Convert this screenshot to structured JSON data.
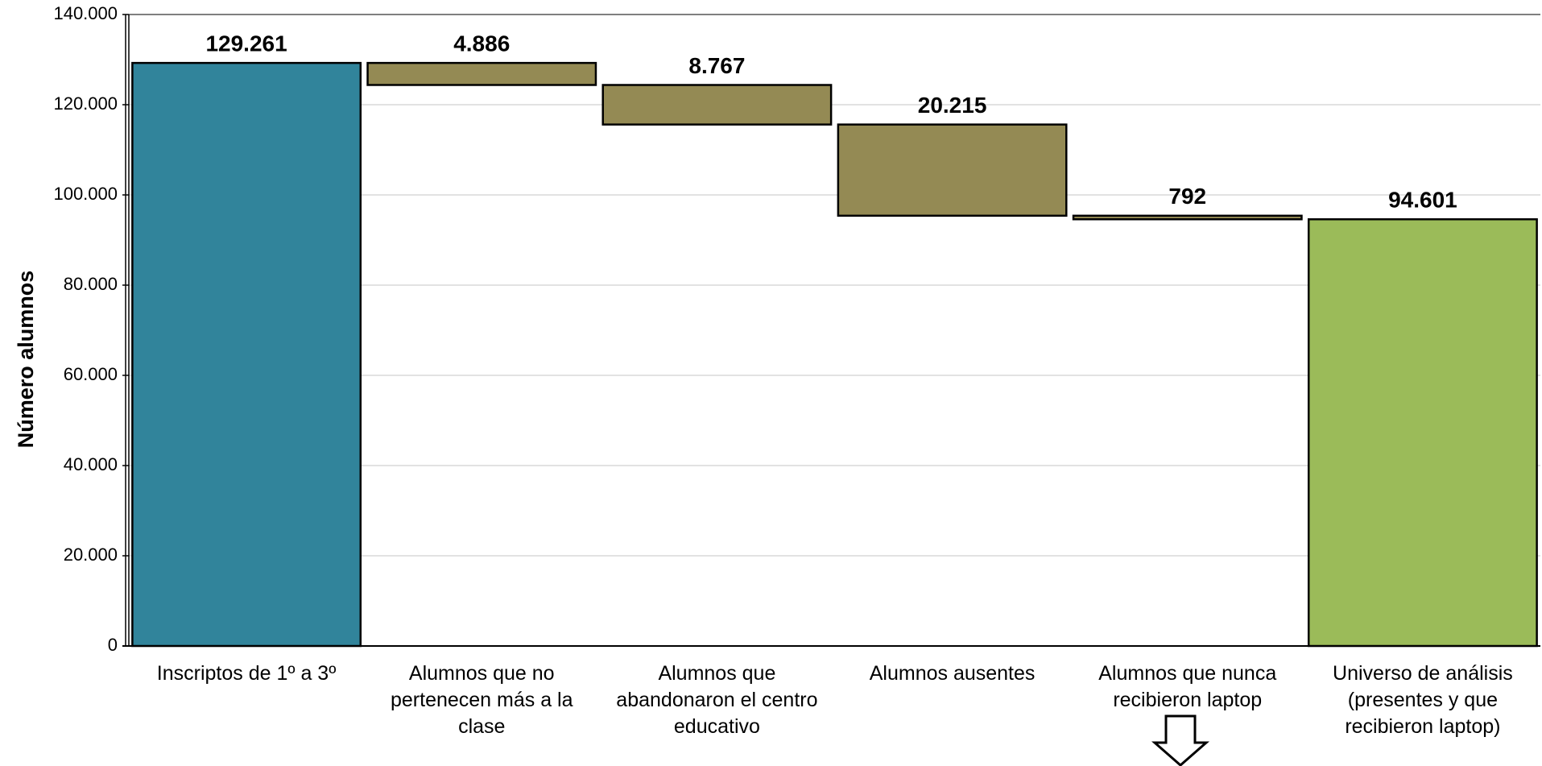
{
  "chart_data": {
    "type": "waterfall",
    "y_label": "Número alumnos",
    "categories": [
      "Inscriptos de 1º a 3º",
      "Alumnos que no pertenecen más a la clase",
      "Alumnos que abandonaron el centro educativo",
      "Alumnos ausentes",
      "Alumnos que nunca recibieron laptop",
      "Universo de análisis (presentes y que recibieron laptop)"
    ],
    "values": [
      129261,
      4886,
      8767,
      20215,
      792,
      94601
    ],
    "value_labels": [
      "129.261",
      "4.886",
      "8.767",
      "20.215",
      "792",
      "94.601"
    ],
    "measures": [
      "absolute",
      "decrease",
      "decrease",
      "decrease",
      "decrease",
      "total"
    ],
    "colors": [
      "#31849b",
      "#948a54",
      "#948a54",
      "#948a54",
      "#948a54",
      "#9bbb59"
    ],
    "ylim": [
      0,
      140000
    ],
    "yticks": [
      0,
      {
        "value": 20000,
        "label": "20.000"
      },
      {
        "value": 40000,
        "label": "40.000"
      },
      {
        "value": 60000,
        "label": "60.000"
      },
      {
        "value": 80000,
        "label": "80.000"
      },
      {
        "value": 100000,
        "label": "100.000"
      },
      {
        "value": 120000,
        "label": "120.000"
      },
      {
        "value": 140000,
        "label": "140.000"
      }
    ],
    "grid": true
  }
}
